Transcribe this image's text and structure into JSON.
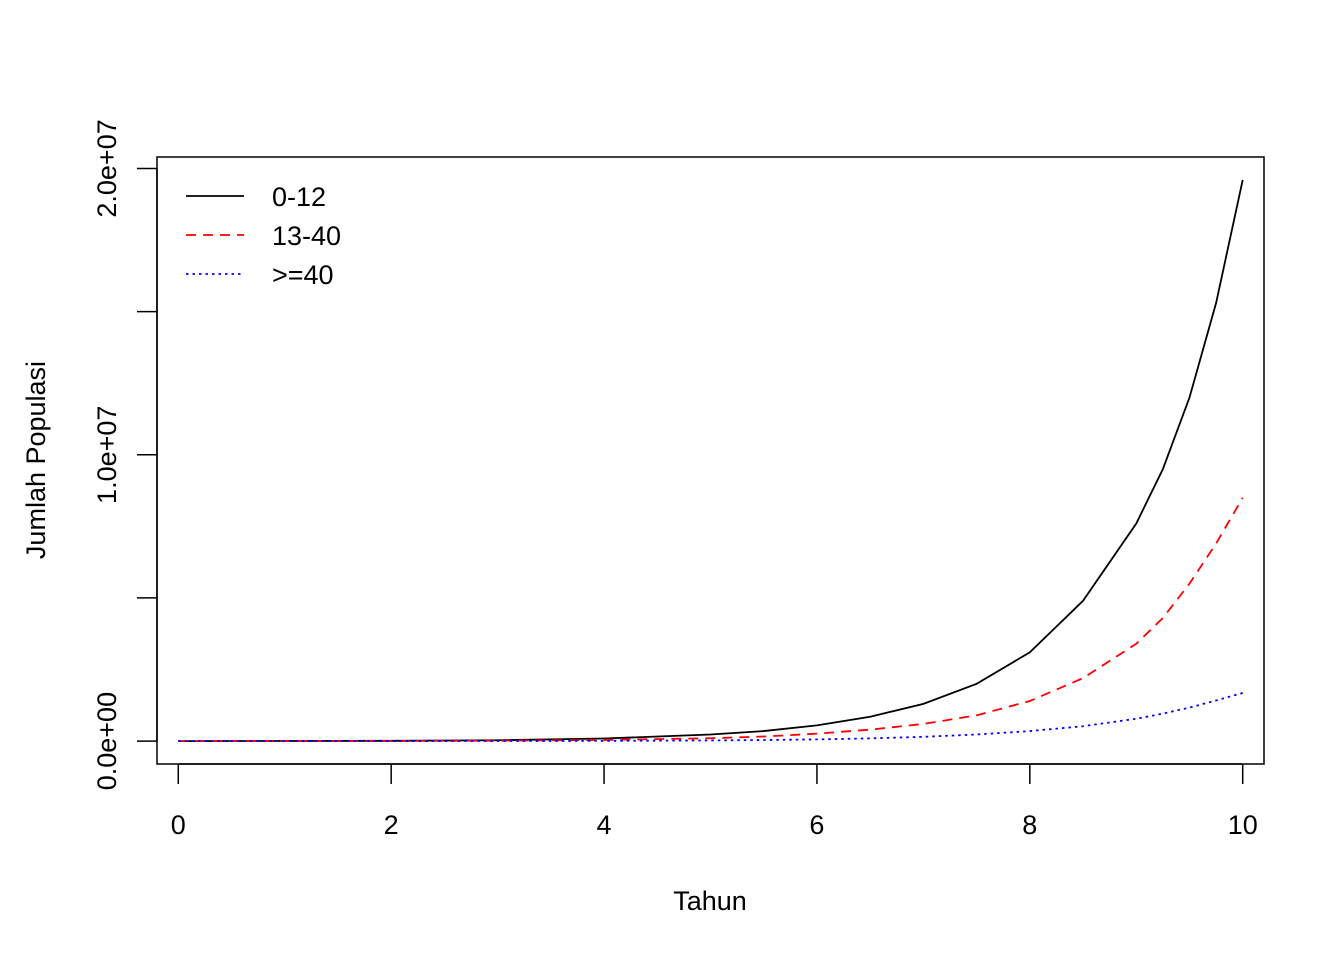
{
  "chart_data": {
    "type": "line",
    "xlabel": "Tahun",
    "ylabel": "Jumlah Populasi",
    "xlim": [
      -0.2,
      10.2
    ],
    "ylim": [
      -800000,
      20400000
    ],
    "x_ticks": [
      0,
      2,
      4,
      6,
      8,
      10
    ],
    "x_tick_labels": [
      "0",
      "2",
      "4",
      "6",
      "8",
      "10"
    ],
    "y_ticks": [
      0,
      5000000,
      10000000,
      15000000,
      20000000
    ],
    "y_tick_labels": [
      "0.0e+00",
      "",
      "1.0e+07",
      "",
      "2.0e+07"
    ],
    "grid": false,
    "legend_position": "top-left",
    "x": [
      0,
      1,
      2,
      3,
      4,
      5,
      5.5,
      6,
      6.5,
      7,
      7.5,
      8,
      8.5,
      9,
      9.25,
      9.5,
      9.75,
      10
    ],
    "series": [
      {
        "name": "0-12",
        "color": "#000000",
        "dash": "solid",
        "values": [
          0,
          3000,
          10000,
          30000,
          90000,
          230000,
          350000,
          550000,
          850000,
          1300000,
          2000000,
          3100000,
          4900000,
          7600000,
          9500000,
          12000000,
          15300000,
          19600000
        ]
      },
      {
        "name": "13-40",
        "color": "#ff0000",
        "dash": "dashed",
        "values": [
          0,
          1000,
          4000,
          15000,
          40000,
          100000,
          160000,
          260000,
          400000,
          600000,
          900000,
          1400000,
          2200000,
          3400000,
          4300000,
          5500000,
          6900000,
          8500000
        ]
      },
      {
        "name": ">=40",
        "color": "#0000ff",
        "dash": "dotted",
        "values": [
          0,
          200,
          800,
          3000,
          8000,
          22000,
          38000,
          60000,
          95000,
          150000,
          230000,
          350000,
          520000,
          780000,
          960000,
          1170000,
          1420000,
          1680000
        ]
      }
    ]
  }
}
